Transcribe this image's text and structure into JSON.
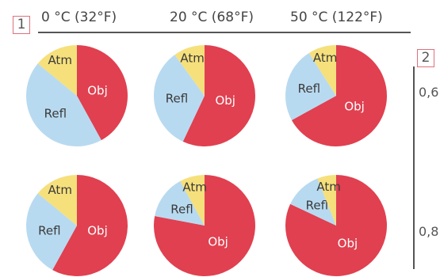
{
  "markers": {
    "one": "1",
    "two": "2"
  },
  "columns": [
    "0 °C (32°F)",
    "20 °C (68°F)",
    "50 °C (122°F)"
  ],
  "rows": [
    "0,6",
    "0,8"
  ],
  "colors": {
    "Obj": "#e04050",
    "Refl": "#b8daf0",
    "Atm": "#f6e07c"
  },
  "chart_data": {
    "type": "pie",
    "title": "",
    "slice_names": [
      "Obj",
      "Refl",
      "Atm"
    ],
    "pies": [
      {
        "row": "0,6",
        "column": "0 °C (32°F)",
        "values": {
          "Obj": 42,
          "Refl": 44,
          "Atm": 14
        }
      },
      {
        "row": "0,6",
        "column": "20 °C (68°F)",
        "values": {
          "Obj": 57,
          "Refl": 33,
          "Atm": 10
        }
      },
      {
        "row": "0,6",
        "column": "50 °C (122°F)",
        "values": {
          "Obj": 67,
          "Refl": 24,
          "Atm": 9
        }
      },
      {
        "row": "0,8",
        "column": "0 °C (32°F)",
        "values": {
          "Obj": 58,
          "Refl": 28,
          "Atm": 14
        }
      },
      {
        "row": "0,8",
        "column": "20 °C (68°F)",
        "values": {
          "Obj": 78,
          "Refl": 14,
          "Atm": 8
        }
      },
      {
        "row": "0,8",
        "column": "50 °C (122°F)",
        "values": {
          "Obj": 82,
          "Refl": 12,
          "Atm": 6
        }
      }
    ]
  }
}
